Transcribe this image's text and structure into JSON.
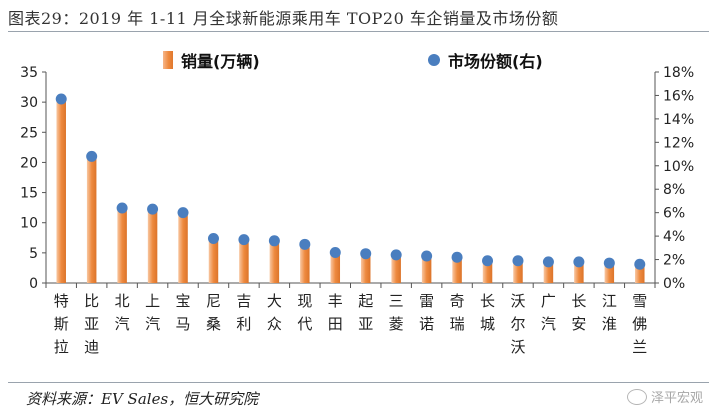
{
  "title": "图表29：2019 年 1-11 月全球新能源乘用车 TOP20 车企销量及市场份额",
  "source": "资料来源：EV Sales，恒大研究院",
  "watermark": "泽平宏观",
  "colors": {
    "bar": "#ee8a3f",
    "bar_light": "#f8c7a2",
    "dot": "#4a7ebf",
    "axis": "#555555"
  },
  "chart_data": {
    "type": "bar",
    "title": "",
    "categories": [
      "特斯拉",
      "比亚迪",
      "北汽",
      "上汽",
      "宝马",
      "尼桑",
      "吉利",
      "大众",
      "现代",
      "丰田",
      "起亚",
      "三菱",
      "雷诺",
      "奇瑞",
      "长城",
      "沃尔沃",
      "广汽",
      "长安",
      "江淮",
      "雪佛兰"
    ],
    "series": [
      {
        "name": "销量(万辆)",
        "axis": "left",
        "kind": "bar",
        "values": [
          30.5,
          21.0,
          12.5,
          12.3,
          11.7,
          7.5,
          7.3,
          7.1,
          6.5,
          5.2,
          5.0,
          4.8,
          4.5,
          4.4,
          3.8,
          3.8,
          3.6,
          3.5,
          3.3,
          3.2
        ]
      },
      {
        "name": "市场份额(右)",
        "axis": "right",
        "kind": "scatter",
        "values": [
          15.7,
          10.8,
          6.4,
          6.3,
          6.0,
          3.8,
          3.7,
          3.6,
          3.3,
          2.6,
          2.5,
          2.4,
          2.3,
          2.2,
          1.9,
          1.9,
          1.8,
          1.8,
          1.7,
          1.6
        ]
      }
    ],
    "ylim_left": [
      0,
      35
    ],
    "yticks_left": [
      0,
      5,
      10,
      15,
      20,
      25,
      30,
      35
    ],
    "ylim_right": [
      0,
      18
    ],
    "yticks_right": [
      "0%",
      "2%",
      "4%",
      "6%",
      "8%",
      "10%",
      "12%",
      "14%",
      "16%",
      "18%"
    ],
    "legend": {
      "bar_label": "销量(万辆)",
      "dot_label": "市场份额(右)"
    },
    "grid": false
  }
}
